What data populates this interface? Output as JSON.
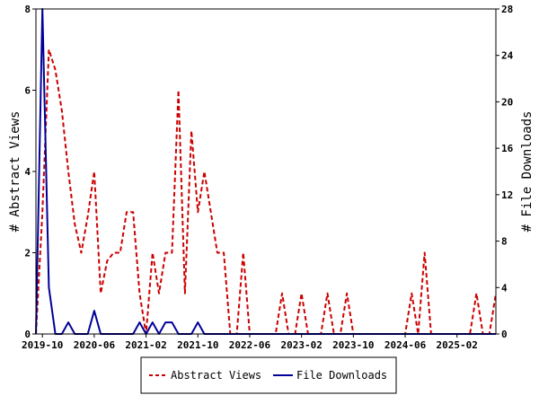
{
  "chart_data": {
    "type": "line",
    "x_ticks": [
      "2019-10",
      "2020-06",
      "2021-02",
      "2021-10",
      "2022-06",
      "2023-02",
      "2023-10",
      "2024-06",
      "2025-02"
    ],
    "x_range": [
      "2019-09",
      "2025-08"
    ],
    "y_left": {
      "label": "# Abstract Views",
      "ticks": [
        0,
        2,
        4,
        6,
        8
      ],
      "range": [
        0,
        8
      ]
    },
    "y_right": {
      "label": "# File Downloads",
      "ticks": [
        0,
        4,
        8,
        12,
        16,
        20,
        24,
        28
      ],
      "range": [
        0,
        28
      ]
    },
    "legend_position": "bottom-center",
    "grid": false,
    "series": [
      {
        "name": "Abstract Views",
        "axis": "left",
        "color": "#cc0000",
        "style": "dashed",
        "points": [
          [
            "2019-09",
            0
          ],
          [
            "2019-10",
            3
          ],
          [
            "2019-11",
            7
          ],
          [
            "2019-12",
            6.5
          ],
          [
            "2020-01",
            5.5
          ],
          [
            "2020-02",
            4
          ],
          [
            "2020-03",
            2.7
          ],
          [
            "2020-04",
            2
          ],
          [
            "2020-05",
            2.9
          ],
          [
            "2020-06",
            4
          ],
          [
            "2020-07",
            1
          ],
          [
            "2020-08",
            1.8
          ],
          [
            "2020-09",
            2
          ],
          [
            "2020-10",
            2
          ],
          [
            "2020-11",
            3
          ],
          [
            "2020-12",
            3
          ],
          [
            "2021-01",
            1
          ],
          [
            "2021-02",
            0
          ],
          [
            "2021-03",
            2
          ],
          [
            "2021-04",
            1
          ],
          [
            "2021-05",
            2
          ],
          [
            "2021-06",
            2
          ],
          [
            "2021-07",
            6
          ],
          [
            "2021-08",
            1
          ],
          [
            "2021-09",
            5
          ],
          [
            "2021-10",
            3
          ],
          [
            "2021-11",
            4
          ],
          [
            "2021-12",
            3
          ],
          [
            "2022-01",
            2
          ],
          [
            "2022-02",
            2
          ],
          [
            "2022-03",
            0
          ],
          [
            "2022-04",
            0
          ],
          [
            "2022-05",
            2
          ],
          [
            "2022-06",
            0
          ],
          [
            "2022-07",
            0
          ],
          [
            "2022-08",
            0
          ],
          [
            "2022-09",
            0
          ],
          [
            "2022-10",
            0
          ],
          [
            "2022-11",
            1
          ],
          [
            "2022-12",
            0
          ],
          [
            "2023-01",
            0
          ],
          [
            "2023-02",
            1
          ],
          [
            "2023-03",
            0
          ],
          [
            "2023-04",
            0
          ],
          [
            "2023-05",
            0
          ],
          [
            "2023-06",
            1
          ],
          [
            "2023-07",
            0
          ],
          [
            "2023-08",
            0
          ],
          [
            "2023-09",
            1
          ],
          [
            "2023-10",
            0
          ],
          [
            "2023-11",
            0
          ],
          [
            "2023-12",
            0
          ],
          [
            "2024-01",
            0
          ],
          [
            "2024-02",
            0
          ],
          [
            "2024-03",
            0
          ],
          [
            "2024-04",
            0
          ],
          [
            "2024-05",
            0
          ],
          [
            "2024-06",
            0
          ],
          [
            "2024-07",
            1
          ],
          [
            "2024-08",
            0
          ],
          [
            "2024-09",
            2
          ],
          [
            "2024-10",
            0
          ],
          [
            "2024-11",
            0
          ],
          [
            "2024-12",
            0
          ],
          [
            "2025-01",
            0
          ],
          [
            "2025-02",
            0
          ],
          [
            "2025-03",
            0
          ],
          [
            "2025-04",
            0
          ],
          [
            "2025-05",
            1
          ],
          [
            "2025-06",
            0
          ],
          [
            "2025-07",
            0
          ],
          [
            "2025-08",
            1
          ]
        ]
      },
      {
        "name": "File Downloads",
        "axis": "right",
        "color": "#000099",
        "style": "solid",
        "points": [
          [
            "2019-09",
            0
          ],
          [
            "2019-10",
            28
          ],
          [
            "2019-11",
            4
          ],
          [
            "2019-12",
            0
          ],
          [
            "2020-01",
            0
          ],
          [
            "2020-02",
            1
          ],
          [
            "2020-03",
            0
          ],
          [
            "2020-04",
            0
          ],
          [
            "2020-05",
            0
          ],
          [
            "2020-06",
            2
          ],
          [
            "2020-07",
            0
          ],
          [
            "2020-08",
            0
          ],
          [
            "2020-09",
            0
          ],
          [
            "2020-10",
            0
          ],
          [
            "2020-11",
            0
          ],
          [
            "2020-12",
            0
          ],
          [
            "2021-01",
            1
          ],
          [
            "2021-02",
            0
          ],
          [
            "2021-03",
            1
          ],
          [
            "2021-04",
            0
          ],
          [
            "2021-05",
            1
          ],
          [
            "2021-06",
            1
          ],
          [
            "2021-07",
            0
          ],
          [
            "2021-08",
            0
          ],
          [
            "2021-09",
            0
          ],
          [
            "2021-10",
            1
          ],
          [
            "2021-11",
            0
          ],
          [
            "2021-12",
            0
          ],
          [
            "2022-01",
            0
          ],
          [
            "2022-02",
            0
          ],
          [
            "2022-03",
            0
          ],
          [
            "2022-04",
            0
          ],
          [
            "2022-05",
            0
          ],
          [
            "2022-06",
            0
          ],
          [
            "2022-07",
            0
          ],
          [
            "2022-08",
            0
          ],
          [
            "2022-09",
            0
          ],
          [
            "2022-10",
            0
          ],
          [
            "2022-11",
            0
          ],
          [
            "2022-12",
            0
          ],
          [
            "2023-01",
            0
          ],
          [
            "2023-02",
            0
          ],
          [
            "2023-03",
            0
          ],
          [
            "2023-04",
            0
          ],
          [
            "2023-05",
            0
          ],
          [
            "2023-06",
            0
          ],
          [
            "2023-07",
            0
          ],
          [
            "2023-08",
            0
          ],
          [
            "2023-09",
            0
          ],
          [
            "2023-10",
            0
          ],
          [
            "2023-11",
            0
          ],
          [
            "2023-12",
            0
          ],
          [
            "2024-01",
            0
          ],
          [
            "2024-02",
            0
          ],
          [
            "2024-03",
            0
          ],
          [
            "2024-04",
            0
          ],
          [
            "2024-05",
            0
          ],
          [
            "2024-06",
            0
          ],
          [
            "2024-07",
            0
          ],
          [
            "2024-08",
            0
          ],
          [
            "2024-09",
            0
          ],
          [
            "2024-10",
            0
          ],
          [
            "2024-11",
            0
          ],
          [
            "2024-12",
            0
          ],
          [
            "2025-01",
            0
          ],
          [
            "2025-02",
            0
          ],
          [
            "2025-03",
            0
          ],
          [
            "2025-04",
            0
          ],
          [
            "2025-05",
            0
          ],
          [
            "2025-06",
            0
          ],
          [
            "2025-07",
            0
          ],
          [
            "2025-08",
            0
          ]
        ]
      }
    ]
  }
}
